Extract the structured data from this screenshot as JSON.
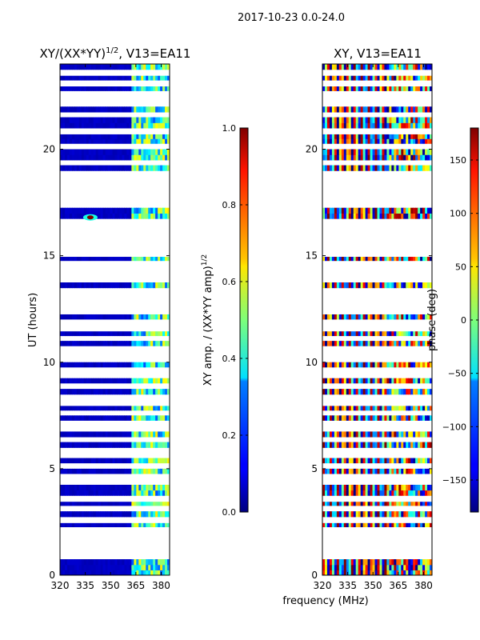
{
  "figure": {
    "suptitle": "2017-10-23 0.0-24.0",
    "xlabel": "frequency (MHz)"
  },
  "chart_data": [
    {
      "type": "heatmap",
      "title_main": "XY/(XX*YY)",
      "title_sup": "1/2",
      "title_rest": ", V13=EA11",
      "xlabel": "",
      "ylabel": "UT (hours)",
      "xlim": [
        320,
        385
      ],
      "ylim": [
        0,
        24
      ],
      "xticks": [
        "320",
        "335",
        "350",
        "365",
        "380"
      ],
      "xtick_values": [
        320,
        335,
        350,
        365,
        380
      ],
      "yticks": [
        "0",
        "5",
        "10",
        "15",
        "20"
      ],
      "ytick_values": [
        0,
        5,
        10,
        15,
        20
      ],
      "colorbar": {
        "label_main": "XY amp. / (XX*YY amp)",
        "label_sup": "1/2",
        "range": [
          0.0,
          1.0
        ],
        "ticks": [
          "0.0",
          "0.2",
          "0.4",
          "0.6",
          "0.8",
          "1.0"
        ],
        "tick_values": [
          0.0,
          0.2,
          0.4,
          0.6,
          0.8,
          1.0
        ],
        "colormap": "jet"
      },
      "description": "low amplitude (~0.05) below 362 MHz; elevated patchy amplitude (~0.3-0.6) at 362-385 MHz; bright spot near 338 MHz at 16.8 h",
      "low_band": {
        "freq_range": [
          320,
          362
        ],
        "value": 0.05
      },
      "high_band": {
        "freq_range": [
          362,
          385
        ],
        "value_range": [
          0.2,
          0.65
        ]
      },
      "hotspot": {
        "freq": 338,
        "ut": 16.8,
        "value": 1.0
      }
    },
    {
      "type": "heatmap",
      "title_main": "XY, V13=EA11",
      "xlabel": "frequency (MHz)",
      "ylabel": "",
      "xlim": [
        320,
        385
      ],
      "ylim": [
        0,
        24
      ],
      "xticks": [
        "320",
        "335",
        "350",
        "365",
        "380"
      ],
      "xtick_values": [
        320,
        335,
        350,
        365,
        380
      ],
      "yticks": [
        "0",
        "5",
        "10",
        "15",
        "20"
      ],
      "ytick_values": [
        0,
        5,
        10,
        15,
        20
      ],
      "colorbar": {
        "label": "phase (deg)",
        "range": [
          -180,
          180
        ],
        "ticks": [
          "−150",
          "−100",
          "−50",
          "0",
          "50",
          "100",
          "150"
        ],
        "tick_values": [
          -150,
          -100,
          -50,
          0,
          50,
          100,
          150
        ],
        "colormap": "jet"
      },
      "description": "phase wraps in vertical stripes below ~358 MHz; noisy mixed phase above"
    }
  ],
  "missing_ut_rows": [
    0.9,
    1.05,
    1.3,
    1.6,
    1.95,
    2.2,
    2.5,
    3.2,
    3.5,
    3.55,
    4.3,
    4.7,
    5.2,
    5.6,
    5.9,
    6.4,
    6.8,
    7.2,
    7.6,
    8.0,
    8.4,
    8.8,
    8.95,
    9.4,
    9.7,
    10.2,
    10.4,
    10.7,
    11.1,
    11.5,
    11.8,
    11.95,
    12.3,
    12.55,
    12.75,
    13.0,
    13.3,
    13.8,
    14.0,
    14.3,
    14.55,
    14.7,
    15.0,
    15.25,
    15.45,
    15.7,
    15.85,
    16.1,
    16.35,
    16.55,
    17.35,
    17.5,
    17.7,
    17.95,
    18.1,
    18.35,
    18.55,
    18.75,
    19.3,
    20.2,
    20.75,
    20.9,
    21.6,
    22.1,
    22.3,
    22.55,
    23.0,
    23.1,
    23.5
  ]
}
